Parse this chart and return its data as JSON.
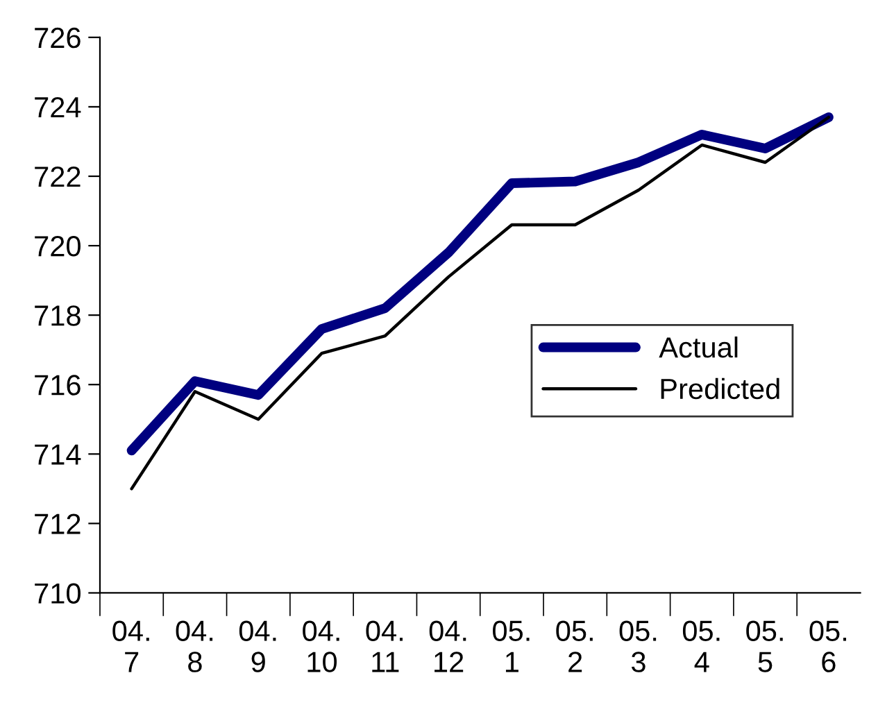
{
  "chart_data": {
    "type": "line",
    "categories": [
      "04.\n7",
      "04.\n8",
      "04.\n9",
      "04.\n10",
      "04.\n11",
      "04.\n12",
      "05.\n1",
      "05.\n2",
      "05.\n3",
      "05.\n4",
      "05.\n5",
      "05.\n6"
    ],
    "series": [
      {
        "name": "Actual",
        "color": "#000080",
        "values": [
          714.1,
          716.1,
          715.7,
          717.6,
          718.2,
          719.8,
          721.8,
          721.85,
          722.4,
          723.2,
          722.8,
          723.7
        ]
      },
      {
        "name": "Predicted",
        "color": "#000000",
        "values": [
          713.0,
          715.8,
          715.0,
          716.9,
          717.4,
          719.1,
          720.6,
          720.6,
          721.6,
          722.9,
          722.4,
          723.7
        ]
      }
    ],
    "ylim": [
      710,
      726
    ],
    "yticks": [
      710,
      712,
      714,
      716,
      718,
      720,
      722,
      724,
      726
    ],
    "grid": false,
    "legend": "right",
    "marker": "none",
    "line_style": "solid"
  }
}
